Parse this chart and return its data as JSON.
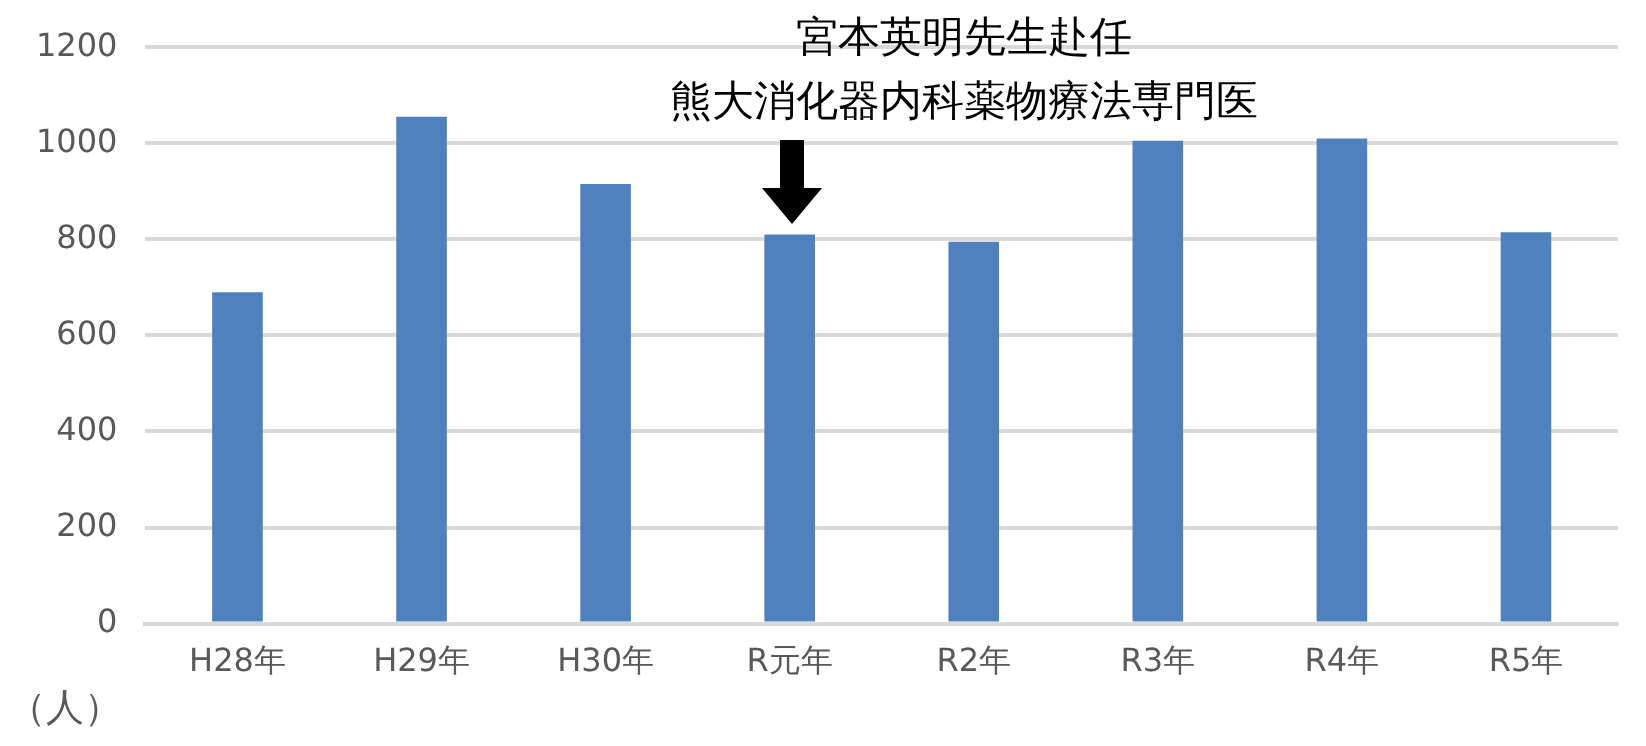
{
  "chart_data": {
    "type": "bar",
    "categories": [
      "H28年",
      "H29年",
      "H30年",
      "R元年",
      "R2年",
      "R3年",
      "R4年",
      "R5年"
    ],
    "values": [
      690,
      1055,
      915,
      810,
      795,
      1005,
      1010,
      815
    ],
    "color": "#4f81bd",
    "ylim": [
      0,
      1200
    ],
    "yticks": [
      0,
      200,
      400,
      600,
      800,
      1000,
      1200
    ],
    "ylabel": "（人）",
    "annotations": [
      "宮本英明先生赴任",
      "熊大消化器内科薬物療法専門医"
    ],
    "grid": "y",
    "legend": false
  }
}
